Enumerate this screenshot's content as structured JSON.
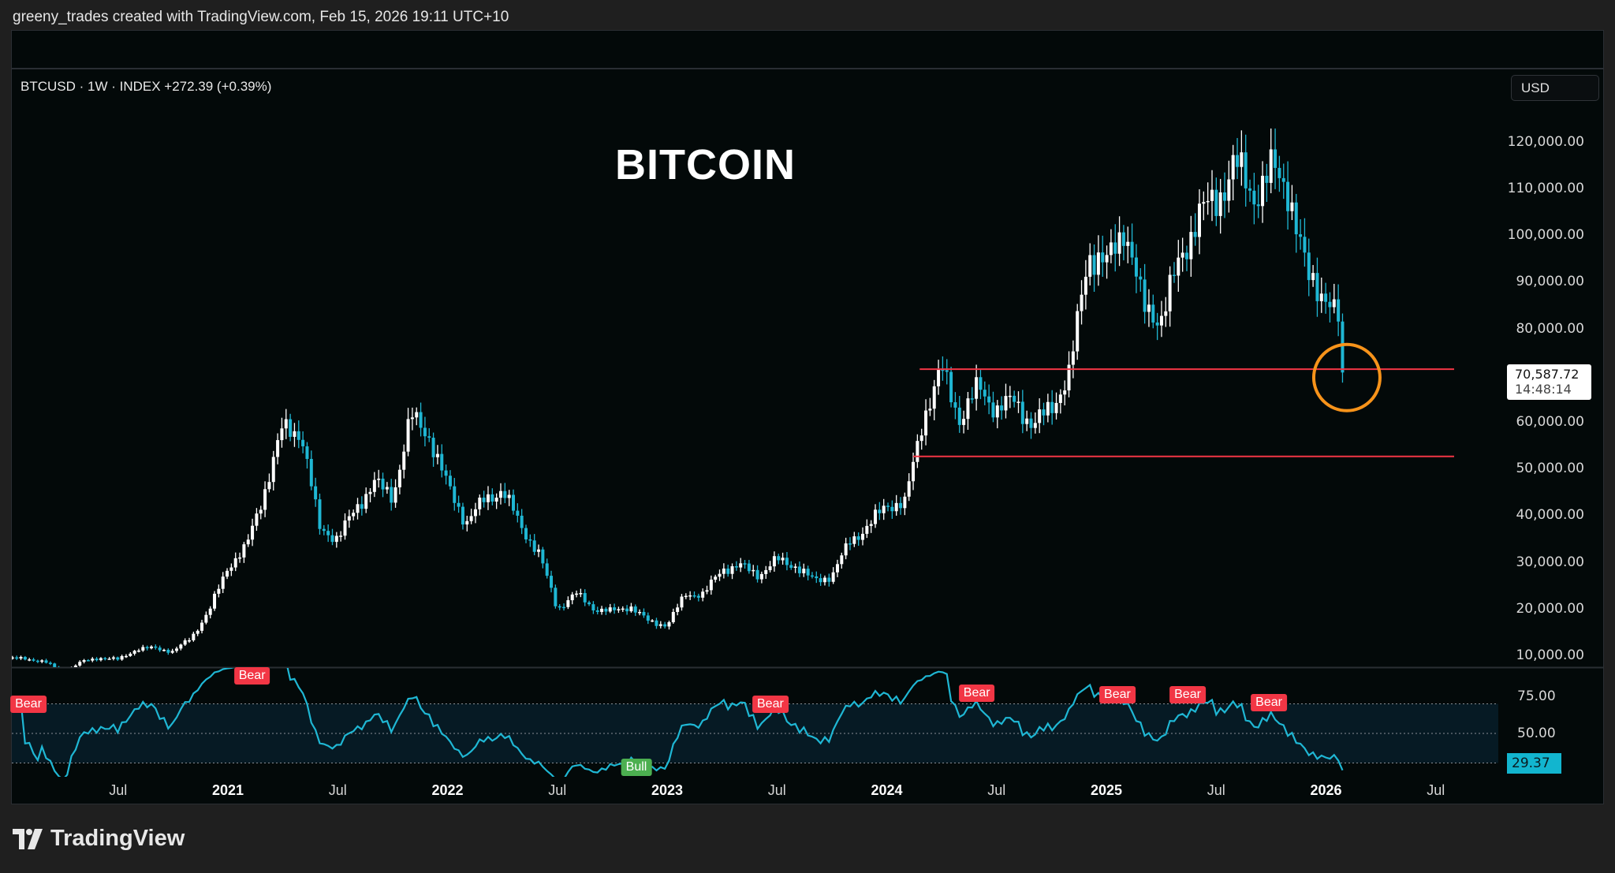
{
  "header": {
    "text": "greeny_trades created with TradingView.com, Feb 15, 2026 19:11 UTC+10"
  },
  "legend": {
    "symbol_line": "BTCUSD · 1W · INDEX  +272.39 (+0.39%)"
  },
  "currency_button": "USD",
  "footer": {
    "brand": "TradingView"
  },
  "colors": {
    "up": "#ffffff",
    "down": "#1fb7d4",
    "rsi_line": "#1fb7d4",
    "levels": "#f23645",
    "circle": "#f7931a",
    "bear": "#f23645",
    "bull": "#4caf50"
  },
  "chart_data": {
    "type": "candlestick",
    "title": "BITCOIN",
    "symbol": "BTCUSD",
    "interval": "1W",
    "x_start": 2020.0,
    "x_range": [
      2020.0,
      2026.8
    ],
    "monthly_close_anchors": [
      9300,
      8600,
      6400,
      8600,
      9500,
      9100,
      11300,
      11600,
      10800,
      13800,
      19700,
      29000,
      33100,
      45200,
      58800,
      57700,
      37300,
      35000,
      41500,
      47100,
      43800,
      61300,
      57000,
      46300,
      38500,
      43200,
      45500,
      37700,
      31800,
      19900,
      23300,
      20000,
      19400,
      20500,
      17200,
      16500,
      23100,
      23100,
      28500,
      29200,
      27200,
      30500,
      29200,
      26000,
      27000,
      34500,
      37700,
      42300,
      42600,
      61100,
      71300,
      60600,
      67500,
      62700,
      64600,
      59000,
      63300,
      70200,
      96400,
      93400,
      102400,
      84300,
      82500,
      94200,
      104600,
      107100,
      115700,
      108200,
      114000,
      109500,
      90400,
      87500,
      78600,
      70587.72
    ],
    "last_price": "70,587.72",
    "countdown": "14:48:14",
    "y_range": [
      5000,
      128000
    ],
    "price_ticks": [
      {
        "v": 120000,
        "label": "120,000.00"
      },
      {
        "v": 110000,
        "label": "110,000.00"
      },
      {
        "v": 100000,
        "label": "100,000.00"
      },
      {
        "v": 90000,
        "label": "90,000.00"
      },
      {
        "v": 80000,
        "label": "80,000.00"
      },
      {
        "v": 60000,
        "label": "60,000.00"
      },
      {
        "v": 50000,
        "label": "50,000.00"
      },
      {
        "v": 40000,
        "label": "40,000.00"
      },
      {
        "v": 30000,
        "label": "30,000.00"
      },
      {
        "v": 20000,
        "label": "20,000.00"
      },
      {
        "v": 10000,
        "label": "10,000.00"
      }
    ],
    "horizontal_levels": [
      {
        "price": 71300,
        "from": 2024.15
      },
      {
        "price": 52600,
        "from": 2024.12
      }
    ],
    "highlight_circle": {
      "t": 2026.095,
      "price": 69500
    },
    "time_ticks": [
      {
        "t": 2020.5,
        "label": "Jul",
        "bold": false
      },
      {
        "t": 2021.0,
        "label": "2021",
        "bold": true
      },
      {
        "t": 2021.5,
        "label": "Jul",
        "bold": false
      },
      {
        "t": 2022.0,
        "label": "2022",
        "bold": true
      },
      {
        "t": 2022.5,
        "label": "Jul",
        "bold": false
      },
      {
        "t": 2023.0,
        "label": "2023",
        "bold": true
      },
      {
        "t": 2023.5,
        "label": "Jul",
        "bold": false
      },
      {
        "t": 2024.0,
        "label": "2024",
        "bold": true
      },
      {
        "t": 2024.5,
        "label": "Jul",
        "bold": false
      },
      {
        "t": 2025.0,
        "label": "2025",
        "bold": true
      },
      {
        "t": 2025.5,
        "label": "Jul",
        "bold": false
      },
      {
        "t": 2026.0,
        "label": "2026",
        "bold": true
      },
      {
        "t": 2026.5,
        "label": "Jul",
        "bold": false
      }
    ],
    "rsi": {
      "period": 14,
      "levels": [
        70,
        50,
        30
      ],
      "ticks": [
        {
          "v": 75,
          "label": "75.00"
        },
        {
          "v": 50,
          "label": "50.00"
        }
      ],
      "last_value": "29.37",
      "signals": [
        {
          "t": 2020.08,
          "rsi": 70,
          "label": "Bear",
          "type": "bear"
        },
        {
          "t": 2021.11,
          "rsi": 89,
          "label": "Bear",
          "type": "bear"
        },
        {
          "t": 2022.86,
          "rsi": 27,
          "label": "Bull",
          "type": "bull"
        },
        {
          "t": 2023.47,
          "rsi": 70,
          "label": "Bear",
          "type": "bear"
        },
        {
          "t": 2024.41,
          "rsi": 77,
          "label": "Bear",
          "type": "bear"
        },
        {
          "t": 2025.05,
          "rsi": 76,
          "label": "Bear",
          "type": "bear"
        },
        {
          "t": 2025.37,
          "rsi": 76,
          "label": "Bear",
          "type": "bear"
        },
        {
          "t": 2025.74,
          "rsi": 71,
          "label": "Bear",
          "type": "bear"
        }
      ]
    }
  }
}
